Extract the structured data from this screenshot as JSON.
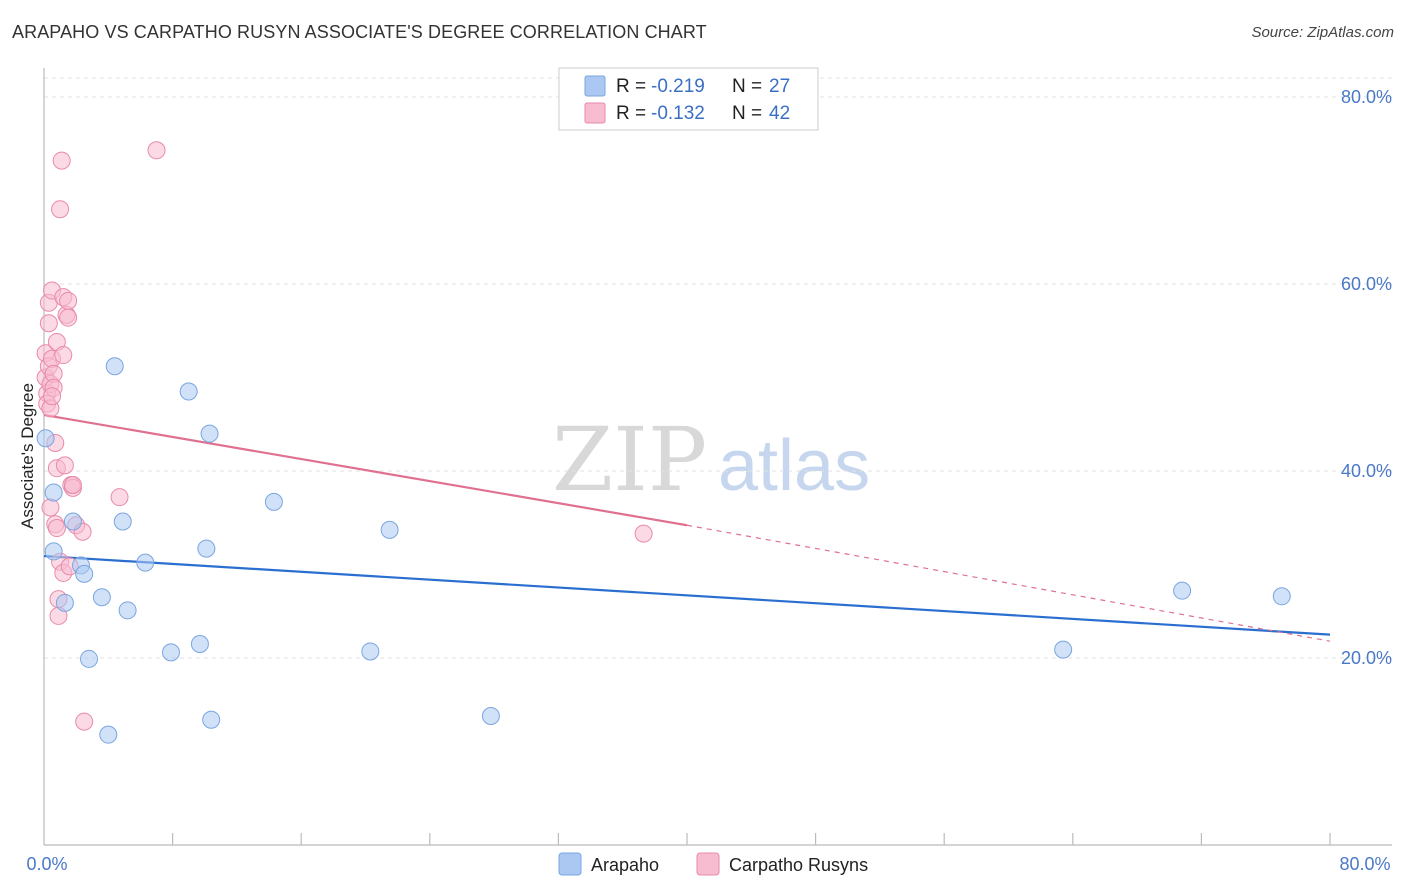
{
  "header": {
    "title": "ARAPAHO VS CARPATHO RUSYN ASSOCIATE'S DEGREE CORRELATION CHART",
    "source": "Source: ZipAtlas.com"
  },
  "colors": {
    "arapaho_fill": "#aac8f2",
    "arapaho_stroke": "#7aa6e0",
    "arapaho_line": "#2a6fd0",
    "rusyn_fill": "#f8bcd0",
    "rusyn_stroke": "#e98aaa",
    "rusyn_line": "#e0708f",
    "grid": "#e2e2e2",
    "tick_label": "#4a78c8"
  },
  "legend": {
    "r_label": "R =",
    "n_label": "N =",
    "rows": [
      {
        "r": "-0.219",
        "n": "27"
      },
      {
        "r": "-0.132",
        "n": "42"
      }
    ]
  },
  "watermark": {
    "zip": "ZIP",
    "atlas": "atlas"
  },
  "chart_data": {
    "type": "scatter",
    "title": "ARAPAHO VS CARPATHO RUSYN ASSOCIATE'S DEGREE CORRELATION CHART",
    "ylabel": "Associate's Degree",
    "xlabel": "",
    "xlim": [
      0,
      80
    ],
    "ylim": [
      0,
      83
    ],
    "x_tick_labels": [
      "0.0%",
      "80.0%"
    ],
    "y_ticks": [
      20,
      40,
      60,
      80
    ],
    "y_tick_labels": [
      "20.0%",
      "40.0%",
      "60.0%",
      "80.0%"
    ],
    "grid": true,
    "series": [
      {
        "name": "Arapaho",
        "r": -0.219,
        "n": 27,
        "trend": {
          "x0": 0,
          "y0": 30.9,
          "x1": 80,
          "y1": 22.5
        },
        "points": [
          [
            0.1,
            43.5
          ],
          [
            0.6,
            37.7
          ],
          [
            0.6,
            31.4
          ],
          [
            1.3,
            25.9
          ],
          [
            1.8,
            34.6
          ],
          [
            2.3,
            29.9
          ],
          [
            2.5,
            29.0
          ],
          [
            2.8,
            19.9
          ],
          [
            3.6,
            26.5
          ],
          [
            4.0,
            11.8
          ],
          [
            4.4,
            51.2
          ],
          [
            4.9,
            34.6
          ],
          [
            5.2,
            25.1
          ],
          [
            6.3,
            30.2
          ],
          [
            7.9,
            20.6
          ],
          [
            9.0,
            48.5
          ],
          [
            9.7,
            21.5
          ],
          [
            10.1,
            31.7
          ],
          [
            10.3,
            44.0
          ],
          [
            10.4,
            13.4
          ],
          [
            14.3,
            36.7
          ],
          [
            20.3,
            20.7
          ],
          [
            21.5,
            33.7
          ],
          [
            27.8,
            13.8
          ],
          [
            63.4,
            20.9
          ],
          [
            70.8,
            27.2
          ],
          [
            77.0,
            26.6
          ]
        ]
      },
      {
        "name": "Carpatho Rusyns",
        "r": -0.132,
        "n": 42,
        "trend": {
          "x0": 0,
          "y0": 46.0,
          "x1": 40,
          "y1": 34.2,
          "dash_x1": 80,
          "dash_y1": 21.8
        },
        "points": [
          [
            0.1,
            52.6
          ],
          [
            0.1,
            50.0
          ],
          [
            0.2,
            48.3
          ],
          [
            0.2,
            47.2
          ],
          [
            0.3,
            58.0
          ],
          [
            0.3,
            55.8
          ],
          [
            0.3,
            51.2
          ],
          [
            0.4,
            49.3
          ],
          [
            0.4,
            46.7
          ],
          [
            0.4,
            36.1
          ],
          [
            0.5,
            59.3
          ],
          [
            0.5,
            52.0
          ],
          [
            0.6,
            50.4
          ],
          [
            0.6,
            48.9
          ],
          [
            0.7,
            43.0
          ],
          [
            0.7,
            34.3
          ],
          [
            0.8,
            53.8
          ],
          [
            0.8,
            40.3
          ],
          [
            0.8,
            33.9
          ],
          [
            0.9,
            26.3
          ],
          [
            0.9,
            24.5
          ],
          [
            1.0,
            68.0
          ],
          [
            1.0,
            30.3
          ],
          [
            1.1,
            73.2
          ],
          [
            1.2,
            58.6
          ],
          [
            1.2,
            52.4
          ],
          [
            1.2,
            29.1
          ],
          [
            1.3,
            40.6
          ],
          [
            1.4,
            56.7
          ],
          [
            1.5,
            58.2
          ],
          [
            1.5,
            56.4
          ],
          [
            1.6,
            29.8
          ],
          [
            1.7,
            38.5
          ],
          [
            1.8,
            38.2
          ],
          [
            1.8,
            38.5
          ],
          [
            2.0,
            34.2
          ],
          [
            2.4,
            33.5
          ],
          [
            2.5,
            13.2
          ],
          [
            4.7,
            37.2
          ],
          [
            7.0,
            74.3
          ],
          [
            37.3,
            33.3
          ],
          [
            0.5,
            48.0
          ]
        ]
      }
    ]
  }
}
